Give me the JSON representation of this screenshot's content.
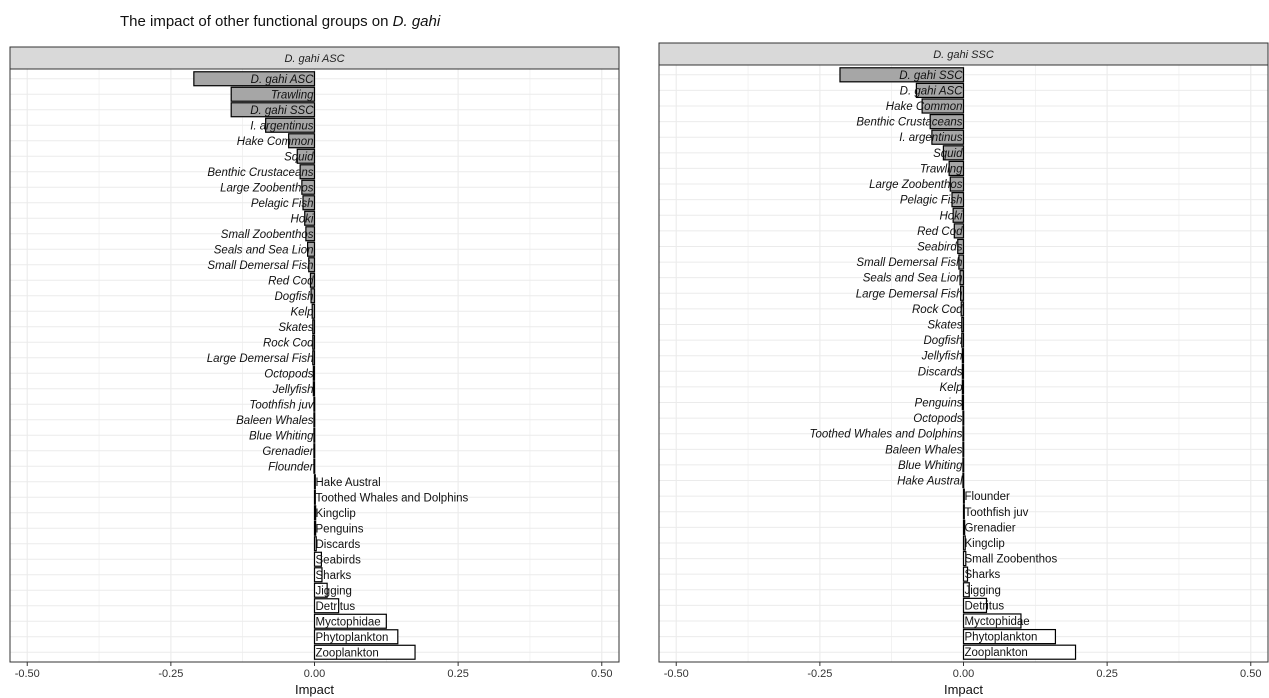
{
  "figure": {
    "title_prefix": "The impact of other functional groups on ",
    "title_italic": "D. gahi"
  },
  "colors": {
    "negative_fill": "#a6a6a6",
    "positive_fill": "#ffffff",
    "bar_stroke": "#000000",
    "strip_fill": "#d9d9d9",
    "grid": "#ebebeb"
  },
  "chart_data": [
    {
      "type": "bar",
      "orientation": "horizontal",
      "panel_title": "D. gahi ASC",
      "xlabel": "Impact",
      "ylabel": "",
      "xlim": [
        -0.53,
        0.53
      ],
      "x_ticks": [
        -0.5,
        -0.25,
        0.0,
        0.25,
        0.5
      ],
      "x_tick_labels": [
        "-0.50",
        "-0.25",
        "0.00",
        "0.25",
        "0.50"
      ],
      "grid": true,
      "categories": [
        "D. gahi ASC",
        "Trawling",
        "D. gahi SSC",
        "I. argentinus",
        "Hake Common",
        "Squid",
        "Benthic Crustaceans",
        "Large Zoobenthos",
        "Pelagic Fish",
        "Hoki",
        "Small Zoobenthos",
        "Seals and Sea Lion",
        "Small Demersal Fish",
        "Red Cod",
        "Dogfish",
        "Kelp",
        "Skates",
        "Rock Cod",
        "Large Demersal Fish",
        "Octopods",
        "Jellyfish",
        "Toothfish juv",
        "Baleen Whales",
        "Blue Whiting",
        "Grenadier",
        "Flounder",
        "Hake Austral",
        "Toothed Whales and Dolphins",
        "Kingclip",
        "Penguins",
        "Discards",
        "Seabirds",
        "Sharks",
        "Jigging",
        "Detritus",
        "Myctophidae",
        "Phytoplankton",
        "Zooplankton"
      ],
      "values": [
        -0.21,
        -0.145,
        -0.145,
        -0.085,
        -0.045,
        -0.03,
        -0.025,
        -0.022,
        -0.02,
        -0.017,
        -0.015,
        -0.012,
        -0.01,
        -0.007,
        -0.006,
        -0.004,
        -0.003,
        -0.003,
        -0.003,
        -0.002,
        -0.002,
        -0.001,
        -0.001,
        -0.001,
        -0.001,
        -0.001,
        0.001,
        0.001,
        0.002,
        0.002,
        0.003,
        0.012,
        0.013,
        0.022,
        0.042,
        0.125,
        0.145,
        0.175
      ]
    },
    {
      "type": "bar",
      "orientation": "horizontal",
      "panel_title": "D. gahi SSC",
      "xlabel": "Impact",
      "ylabel": "",
      "xlim": [
        -0.53,
        0.53
      ],
      "x_ticks": [
        -0.5,
        -0.25,
        0.0,
        0.25,
        0.5
      ],
      "x_tick_labels": [
        "-0.50",
        "-0.25",
        "0.00",
        "0.25",
        "0.50"
      ],
      "grid": true,
      "categories": [
        "D. gahi SSC",
        "D. gahi ASC",
        "Hake Common",
        "Benthic Crustaceans",
        "I. argentinus",
        "Squid",
        "Trawling",
        "Large Zoobenthos",
        "Pelagic Fish",
        "Hoki",
        "Red Cod",
        "Seabirds",
        "Small Demersal Fish",
        "Seals and Sea Lion",
        "Large Demersal Fish",
        "Rock Cod",
        "Skates",
        "Dogfish",
        "Jellyfish",
        "Discards",
        "Kelp",
        "Penguins",
        "Octopods",
        "Toothed Whales and Dolphins",
        "Baleen Whales",
        "Blue Whiting",
        "Hake Austral",
        "Flounder",
        "Toothfish juv",
        "Grenadier",
        "Kingclip",
        "Small Zoobenthos",
        "Sharks",
        "Jigging",
        "Detritus",
        "Myctophidae",
        "Phytoplankton",
        "Zooplankton"
      ],
      "values": [
        -0.215,
        -0.082,
        -0.072,
        -0.058,
        -0.055,
        -0.035,
        -0.025,
        -0.023,
        -0.02,
        -0.018,
        -0.016,
        -0.01,
        -0.008,
        -0.006,
        -0.005,
        -0.004,
        -0.003,
        -0.003,
        -0.002,
        -0.002,
        -0.002,
        -0.002,
        -0.001,
        -0.001,
        -0.001,
        -0.001,
        -0.001,
        0.001,
        0.001,
        0.002,
        0.003,
        0.004,
        0.007,
        0.01,
        0.04,
        0.1,
        0.16,
        0.195
      ]
    }
  ]
}
